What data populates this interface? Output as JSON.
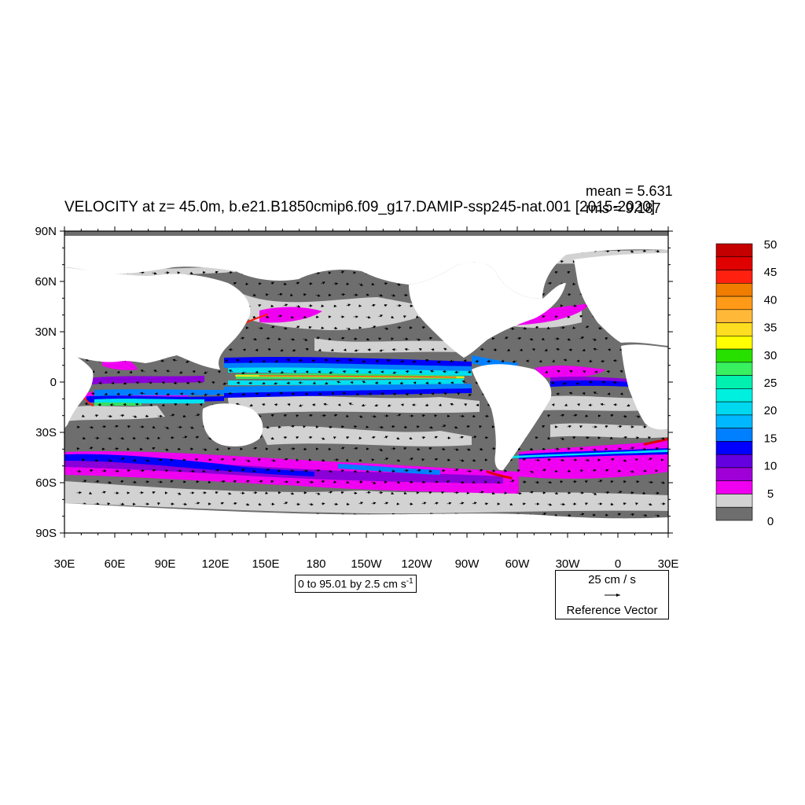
{
  "title": "VELOCITY at z=  45.0m, b.e21.B1850cmip6.f09_g17.DAMIP-ssp245-nat.001 [2015-2020]",
  "stats": {
    "mean": "mean = 5.631",
    "rms": "rms = 9.187"
  },
  "y_ticks": [
    "90N",
    "60N",
    "30N",
    "0",
    "30S",
    "60S",
    "90S"
  ],
  "x_ticks": [
    "30E",
    "60E",
    "90E",
    "120E",
    "150E",
    "180",
    "150W",
    "120W",
    "90W",
    "60W",
    "30W",
    "0",
    "30E"
  ],
  "contour_info": {
    "text": "0 to 95.01 by 2.5 cm s",
    "sup": "-1"
  },
  "reference_vector": {
    "magnitude": "25 cm / s",
    "label": "Reference Vector"
  },
  "colorbar": {
    "labels": [
      "50",
      "45",
      "40",
      "35",
      "30",
      "25",
      "20",
      "15",
      "10",
      "5",
      "0"
    ],
    "colors_top_to_bottom": [
      "#c40000",
      "#e00000",
      "#ff2010",
      "#f07c00",
      "#ff9a18",
      "#ffb838",
      "#ffdd20",
      "#ffff00",
      "#28e000",
      "#38f060",
      "#00f0b0",
      "#00f0e0",
      "#00d8f0",
      "#00b8ff",
      "#0080ff",
      "#0000ff",
      "#6400e0",
      "#a000d8",
      "#f000f0",
      "#d2d2d2",
      "#6e6e6e"
    ]
  },
  "colors": {
    "land": "#ffffff",
    "frame": "#000000"
  }
}
